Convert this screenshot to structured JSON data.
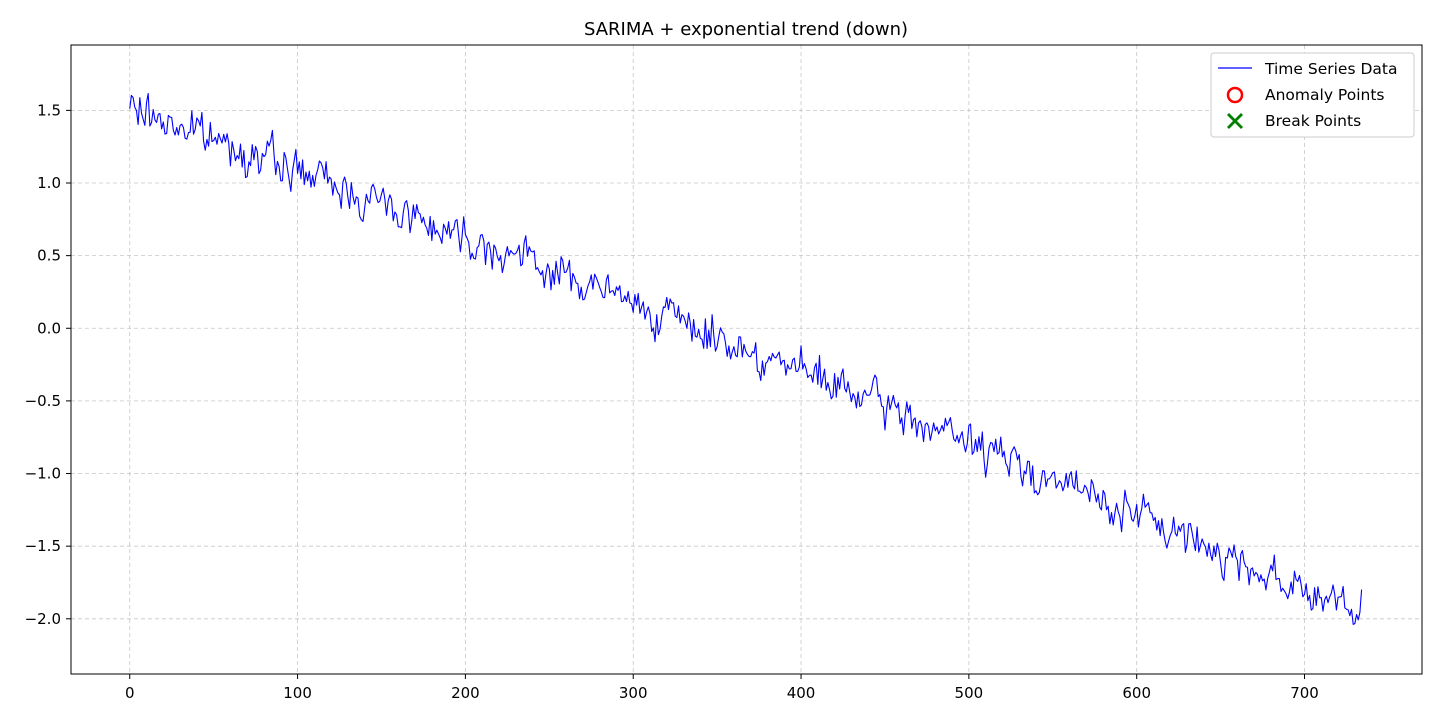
{
  "chart_data": {
    "type": "line",
    "title": "SARIMA + exponential trend (down)",
    "xlabel": "",
    "ylabel": "",
    "xlim": [
      -35,
      770
    ],
    "ylim": [
      -2.38,
      1.95
    ],
    "x_ticks": [
      0,
      100,
      200,
      300,
      400,
      500,
      600,
      700
    ],
    "y_ticks": [
      -2.0,
      -1.5,
      -1.0,
      -0.5,
      0.0,
      0.5,
      1.0,
      1.5
    ],
    "y_tick_labels": [
      "−2.0",
      "−1.5",
      "−1.0",
      "−0.5",
      "0.0",
      "0.5",
      "1.0",
      "1.5"
    ],
    "grid": true,
    "legend_position": "top-right",
    "series_generator": {
      "n": 735,
      "start": 1.52,
      "end": -1.98,
      "noise_amplitude": 0.13,
      "seed": 7
    },
    "series": [
      {
        "name": "Time Series Data",
        "color": "#0000ff",
        "style": "line"
      },
      {
        "name": "Anomaly Points",
        "color": "#ff0000",
        "style": "circle",
        "values": []
      },
      {
        "name": "Break Points",
        "color": "#008000",
        "style": "x",
        "values": []
      }
    ]
  }
}
